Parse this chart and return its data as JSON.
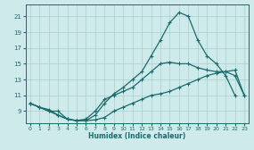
{
  "xlabel": "Humidex (Indice chaleur)",
  "bg_color": "#ceeaea",
  "line_color": "#1a6b6b",
  "grid_color": "#aacece",
  "xlim": [
    -0.5,
    23.5
  ],
  "ylim": [
    7.5,
    22.5
  ],
  "xticks": [
    0,
    1,
    2,
    3,
    4,
    5,
    6,
    7,
    8,
    9,
    10,
    11,
    12,
    13,
    14,
    15,
    16,
    17,
    18,
    19,
    20,
    21,
    22,
    23
  ],
  "yticks": [
    9,
    11,
    13,
    15,
    17,
    19,
    21
  ],
  "line1_x": [
    0,
    1,
    2,
    3,
    4,
    5,
    6,
    7,
    8,
    9,
    10,
    11,
    12,
    13,
    14,
    15,
    16,
    17,
    18,
    19,
    20,
    21,
    22,
    23
  ],
  "line1_y": [
    10,
    9.5,
    9.2,
    8.5,
    8,
    7.8,
    7.8,
    7.9,
    8.2,
    9,
    9.5,
    10,
    10.5,
    11,
    11.2,
    11.5,
    12,
    12.5,
    13,
    13.5,
    13.8,
    14,
    14.2,
    11
  ],
  "line2_x": [
    0,
    1,
    2,
    3,
    4,
    5,
    6,
    7,
    8,
    9,
    10,
    11,
    12,
    13,
    14,
    15,
    16,
    17,
    18,
    19,
    20,
    21,
    22
  ],
  "line2_y": [
    10,
    9.5,
    9,
    8.5,
    8,
    7.8,
    7.8,
    8.5,
    10,
    11.2,
    12,
    13,
    14,
    16,
    18,
    20.2,
    21.5,
    21,
    18,
    16,
    15,
    13.5,
    11
  ],
  "line3_x": [
    0,
    1,
    2,
    3,
    4,
    5,
    6,
    7,
    8,
    9,
    10,
    11,
    12,
    13,
    14,
    15,
    16,
    17,
    18,
    19,
    20,
    21,
    22,
    23
  ],
  "line3_y": [
    10,
    9.5,
    9,
    9,
    8,
    7.8,
    8,
    9,
    10.5,
    11,
    11.5,
    12,
    13,
    14,
    15,
    15.2,
    15,
    15,
    14.5,
    14.2,
    14,
    14,
    13.5,
    11
  ]
}
